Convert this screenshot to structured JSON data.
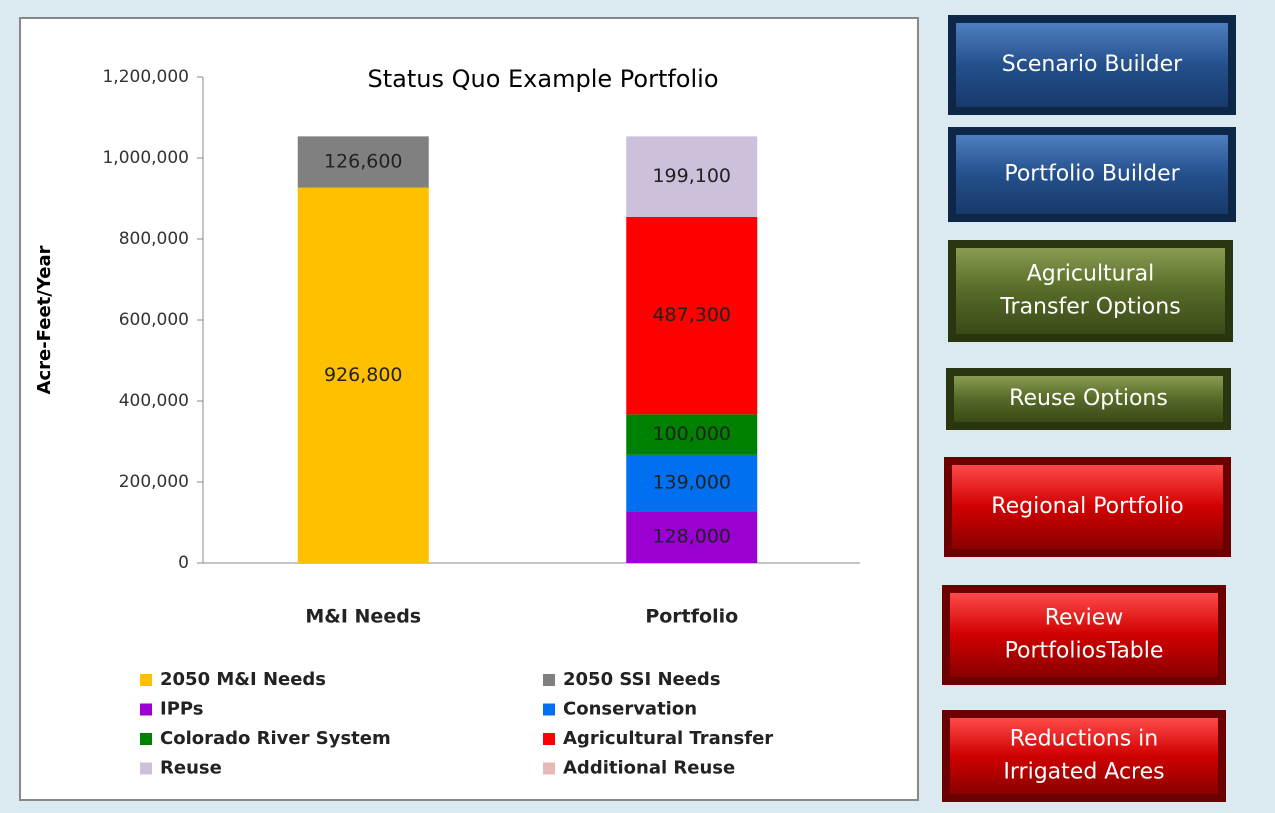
{
  "chart_data": {
    "type": "stacked_bar",
    "title": "Status Quo Example Portfolio",
    "y_label": "Acre-Feet/Year",
    "categories": [
      "M&I Needs",
      "Portfolio"
    ],
    "series": [
      {
        "name": "2050 M&I Needs",
        "color": "#ffc000",
        "values": [
          926800,
          null
        ],
        "value_labels": [
          "926,800",
          null
        ]
      },
      {
        "name": "2050 SSI Needs",
        "color": "#808080",
        "values": [
          126600,
          null
        ],
        "value_labels": [
          "126,600",
          null
        ]
      },
      {
        "name": "IPPs",
        "color": "#9b00d3",
        "values": [
          null,
          128000
        ],
        "value_labels": [
          null,
          "128,000"
        ]
      },
      {
        "name": "Conservation",
        "color": "#0070f0",
        "values": [
          null,
          139000
        ],
        "value_labels": [
          null,
          "139,000"
        ]
      },
      {
        "name": "Colorado River System",
        "color": "#008000",
        "values": [
          null,
          100000
        ],
        "value_labels": [
          null,
          "100,000"
        ]
      },
      {
        "name": "Agricultural Transfer",
        "color": "#ff0000",
        "values": [
          null,
          487300
        ],
        "value_labels": [
          null,
          "487,300"
        ]
      },
      {
        "name": "Reuse",
        "color": "#ccc0da",
        "values": [
          null,
          199100
        ],
        "value_labels": [
          null,
          "199,100"
        ]
      },
      {
        "name": "Additional Reuse",
        "color": "#e6b9b8",
        "values": [
          null,
          null
        ]
      }
    ],
    "ylim": [
      0,
      1200000
    ],
    "yticks": [
      0,
      {
        "value": 200000,
        "label": "200,000"
      },
      {
        "value": 400000,
        "label": "400,000"
      },
      {
        "value": 600000,
        "label": "600,000"
      },
      {
        "value": 800000,
        "label": "800,000"
      },
      {
        "value": 1000000,
        "label": "1,000,000"
      },
      {
        "value": 1200000,
        "label": "1,200,000"
      }
    ],
    "legend": "bottom"
  },
  "buttons": [
    {
      "lines": [
        "Scenario Builder"
      ],
      "color": "blue"
    },
    {
      "lines": [
        "Portfolio Builder"
      ],
      "color": "blue"
    },
    {
      "lines": [
        "Agricultural",
        "Transfer Options"
      ],
      "color": "green"
    },
    {
      "lines": [
        "Reuse Options"
      ],
      "color": "green"
    },
    {
      "lines": [
        "Regional Portfolio"
      ],
      "color": "red"
    },
    {
      "lines": [
        "Review",
        "PortfoliosTable"
      ],
      "color": "red"
    },
    {
      "lines": [
        "Reductions in",
        "Irrigated Acres"
      ],
      "color": "red"
    }
  ]
}
